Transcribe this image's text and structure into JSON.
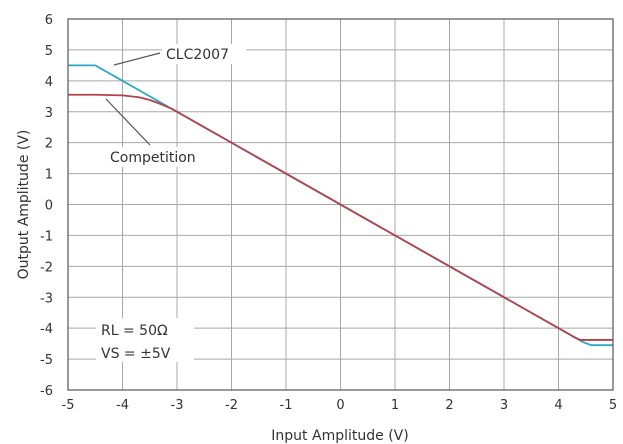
{
  "chart_data": {
    "type": "line",
    "title": "",
    "xlabel": "Input Amplitude (V)",
    "ylabel": "Output Amplitude (V)",
    "xlim": [
      -5,
      5
    ],
    "ylim": [
      -6,
      6
    ],
    "x_ticks": [
      "-5",
      "-4",
      "-3",
      "-2",
      "-1",
      "0",
      "1",
      "2",
      "3",
      "4",
      "5"
    ],
    "y_ticks": [
      "-6",
      "-5",
      "-4",
      "-3",
      "-2",
      "-1",
      "0",
      "1",
      "2",
      "3",
      "4",
      "5",
      "6"
    ],
    "grid": true,
    "series": [
      {
        "name": "CLC2007",
        "color": "#2aa8c4",
        "points": [
          [
            -5,
            4.5
          ],
          [
            -4.5,
            4.5
          ],
          [
            -3.3,
            3.3
          ],
          [
            4.45,
            -4.45
          ],
          [
            4.6,
            -4.55
          ],
          [
            5,
            -4.55
          ]
        ]
      },
      {
        "name": "Competition",
        "color": "#b5424a",
        "points": [
          [
            -5,
            3.55
          ],
          [
            -4.5,
            3.55
          ],
          [
            -4.0,
            3.53
          ],
          [
            -3.7,
            3.47
          ],
          [
            -3.5,
            3.38
          ],
          [
            -3.3,
            3.25
          ],
          [
            -3.1,
            3.1
          ],
          [
            4.3,
            -4.3
          ],
          [
            4.4,
            -4.38
          ],
          [
            5,
            -4.38
          ]
        ]
      }
    ],
    "annotations": [
      {
        "text": "CLC2007",
        "series": "CLC2007"
      },
      {
        "text": "Competition",
        "series": "Competition"
      },
      {
        "text": "RL = 50Ω"
      },
      {
        "text": "VS = ±5V"
      }
    ]
  }
}
